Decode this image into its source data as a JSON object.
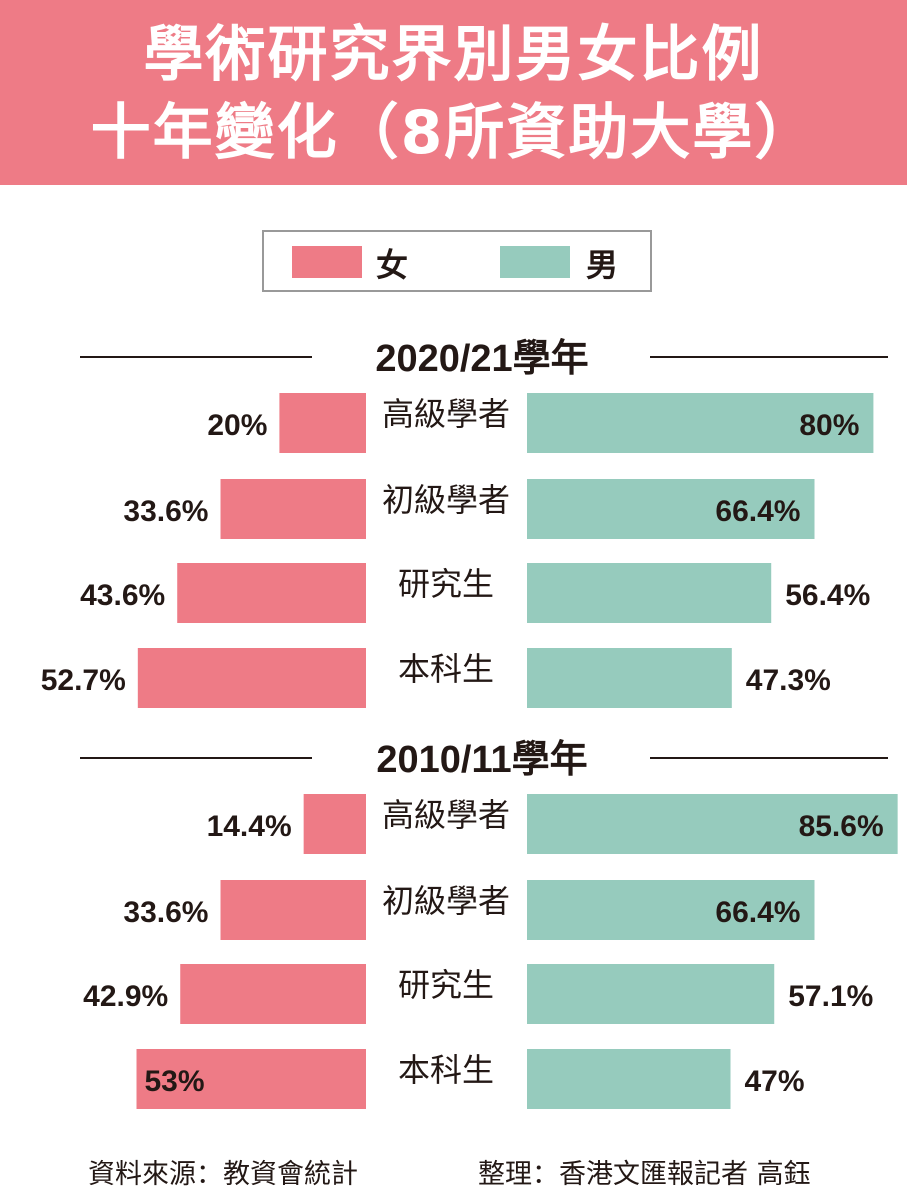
{
  "title_lines": [
    "學術研究界別男女比例",
    "十年變化（8所資助大學）"
  ],
  "legend": {
    "female": "女",
    "male": "男"
  },
  "colors": {
    "female": "#EE7B86",
    "male": "#96CBBD",
    "banner": "#EE7B86"
  },
  "chart_data": {
    "type": "bar",
    "orientation": "horizontal-diverging",
    "categories": [
      "高級學者",
      "初級學者",
      "研究生",
      "本科生"
    ],
    "panels": [
      {
        "title": "2020/21學年",
        "series": [
          {
            "name": "女",
            "values": [
              20,
              33.6,
              43.6,
              52.7
            ],
            "labels": [
              "20%",
              "33.6%",
              "43.6%",
              "52.7%"
            ]
          },
          {
            "name": "男",
            "values": [
              80,
              66.4,
              56.4,
              47.3
            ],
            "labels": [
              "80%",
              "66.4%",
              "56.4%",
              "47.3%"
            ]
          }
        ]
      },
      {
        "title": "2010/11學年",
        "series": [
          {
            "name": "女",
            "values": [
              14.4,
              33.6,
              42.9,
              53
            ],
            "labels": [
              "14.4%",
              "33.6%",
              "42.9%",
              "53%"
            ]
          },
          {
            "name": "男",
            "values": [
              85.6,
              66.4,
              57.1,
              47
            ],
            "labels": [
              "85.6%",
              "66.4%",
              "57.1%",
              "47%"
            ]
          }
        ]
      }
    ],
    "unit": "%"
  },
  "footer": {
    "source": "資料來源：教資會統計",
    "credit": "整理：香港文匯報記者 高鈺"
  }
}
